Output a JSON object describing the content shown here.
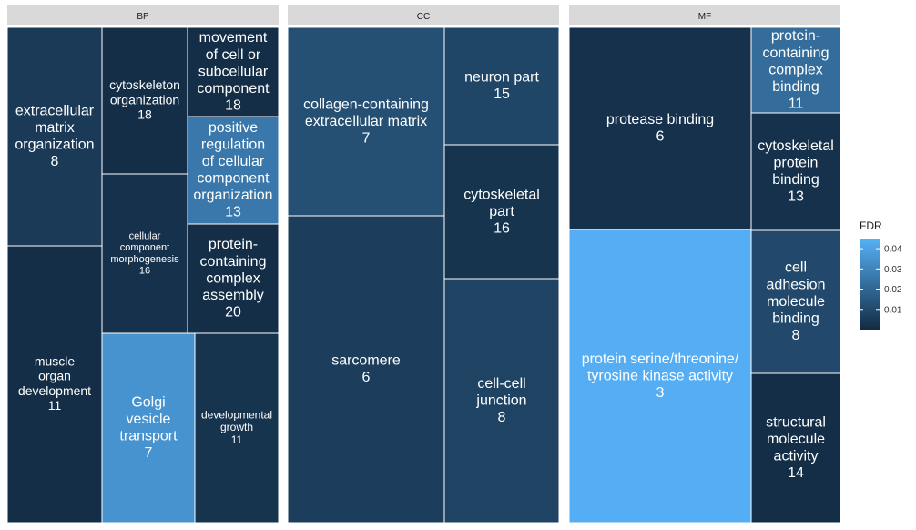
{
  "chart_data": {
    "type": "treemap",
    "legend": {
      "title": "FDR",
      "placement": "right",
      "range": [
        0,
        0.045
      ],
      "ticks": [
        0.01,
        0.02,
        0.03,
        0.04
      ],
      "tick_labels": [
        "0.01",
        "0.02",
        "0.03",
        "0.04"
      ],
      "color_low": "#132B43",
      "color_high": "#56B1F7"
    },
    "panels": [
      {
        "name": "BP",
        "tiles": [
          {
            "term": "extracellular matrix organization",
            "lines": [
              "extracellular",
              "matrix",
              "organization"
            ],
            "count": 8,
            "fdr": 0.005
          },
          {
            "term": "muscle organ development",
            "lines": [
              "muscle",
              "organ",
              "development"
            ],
            "count": 11,
            "fdr": 0.001
          },
          {
            "term": "cytoskeleton organization",
            "lines": [
              "cytoskeleton",
              "organization"
            ],
            "count": 18,
            "fdr": 0.001
          },
          {
            "term": "cellular component morphogenesis",
            "lines": [
              "cellular",
              "component",
              "morphogenesis"
            ],
            "count": 16,
            "fdr": 0.002
          },
          {
            "term": "Golgi vesicle transport",
            "lines": [
              "Golgi",
              "vesicle",
              "transport"
            ],
            "count": 7,
            "fdr": 0.035
          },
          {
            "term": "developmental growth",
            "lines": [
              "developmental",
              "growth"
            ],
            "count": 11,
            "fdr": 0.003
          },
          {
            "term": "movement of cell or subcellular component",
            "lines": [
              "movement",
              "of cell or",
              "subcellular",
              "component"
            ],
            "count": 18,
            "fdr": 0.001
          },
          {
            "term": "positive regulation of cellular component organization",
            "lines": [
              "positive",
              "regulation",
              "of cellular",
              "component",
              "organization"
            ],
            "count": 13,
            "fdr": 0.026
          },
          {
            "term": "protein-containing complex assembly",
            "lines": [
              "protein-",
              "containing",
              "complex",
              "assembly"
            ],
            "count": 20,
            "fdr": 0.001
          }
        ]
      },
      {
        "name": "CC",
        "tiles": [
          {
            "term": "collagen-containing extracellular matrix",
            "lines": [
              "collagen-containing",
              "extracellular matrix"
            ],
            "count": 7,
            "fdr": 0.012
          },
          {
            "term": "sarcomere",
            "lines": [
              "sarcomere"
            ],
            "count": 6,
            "fdr": 0.006
          },
          {
            "term": "neuron part",
            "lines": [
              "neuron part"
            ],
            "count": 15,
            "fdr": 0.009
          },
          {
            "term": "cytoskeletal part",
            "lines": [
              "cytoskeletal",
              "part"
            ],
            "count": 16,
            "fdr": 0.003
          },
          {
            "term": "cell-cell junction",
            "lines": [
              "cell-cell",
              "junction"
            ],
            "count": 8,
            "fdr": 0.008
          }
        ]
      },
      {
        "name": "MF",
        "tiles": [
          {
            "term": "protease binding",
            "lines": [
              "protease binding"
            ],
            "count": 6,
            "fdr": 0.002
          },
          {
            "term": "protein serine/threonine/tyrosine kinase activity",
            "lines": [
              "protein serine/threonine/",
              "tyrosine kinase activity"
            ],
            "count": 3,
            "fdr": 0.044
          },
          {
            "term": "protein-containing complex binding",
            "lines": [
              "protein-",
              "containing",
              "complex",
              "binding"
            ],
            "count": 11,
            "fdr": 0.022
          },
          {
            "term": "cytoskeletal protein binding",
            "lines": [
              "cytoskeletal",
              "protein",
              "binding"
            ],
            "count": 13,
            "fdr": 0.002
          },
          {
            "term": "cell adhesion molecule binding",
            "lines": [
              "cell",
              "adhesion",
              "molecule",
              "binding"
            ],
            "count": 8,
            "fdr": 0.01
          },
          {
            "term": "structural molecule activity",
            "lines": [
              "structural",
              "molecule",
              "activity"
            ],
            "count": 14,
            "fdr": 0.001
          }
        ]
      }
    ]
  }
}
